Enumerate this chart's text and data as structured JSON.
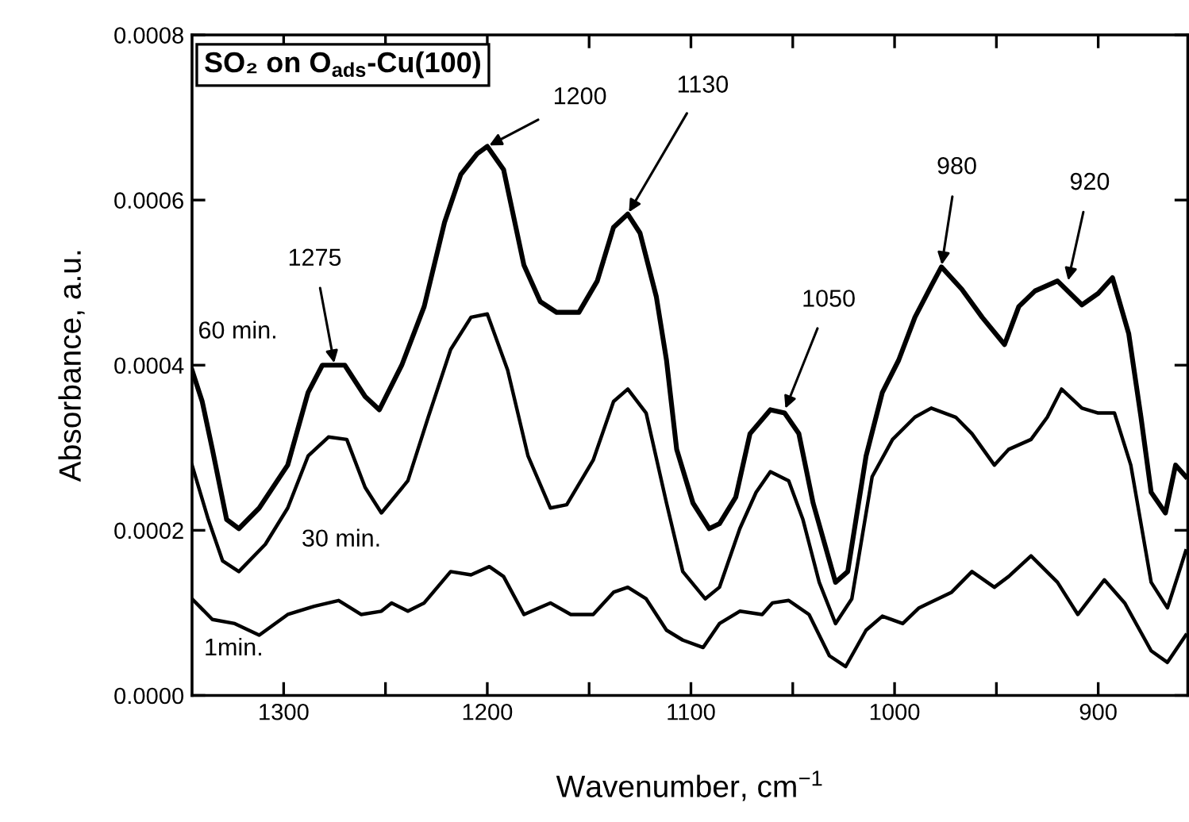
{
  "chart_data": {
    "type": "line",
    "title": "SO₂ on O$_{ads}$-Cu(100)",
    "xlabel": "Wavenumber, cm$^{−1}$",
    "ylabel": "Absorbance, a.u.",
    "xlim": [
      1345,
      856
    ],
    "xticks": [
      1300,
      {
        "value": 1250,
        "label": null
      },
      1200,
      {
        "value": 1150,
        "label": null
      },
      1100,
      {
        "value": 1050,
        "label": null
      },
      1000,
      {
        "value": 950,
        "label": null
      },
      900
    ],
    "ylim": [
      0,
      0.0008
    ],
    "yticks": [
      {
        "value": 0,
        "label": "0.0000"
      },
      {
        "value": 0.0002,
        "label": "0.0002"
      },
      {
        "value": 0.0004,
        "label": "0.0004"
      },
      {
        "value": 0.0006,
        "label": "0.0006"
      },
      {
        "value": 0.0008,
        "label": "0.0008"
      }
    ],
    "grid": false,
    "legend": false,
    "marker": "none",
    "line_style": "solid",
    "series": [
      {
        "name": "60 min.",
        "color": "#000000",
        "x": [
          1345,
          1340,
          1335,
          1328,
          1322,
          1312,
          1298,
          1288,
          1281,
          1270,
          1260,
          1253,
          1242,
          1231,
          1221,
          1213,
          1205,
          1200,
          1192,
          1182,
          1174,
          1166,
          1155,
          1146,
          1138,
          1131,
          1125,
          1117,
          1112,
          1107,
          1099,
          1091,
          1086,
          1078,
          1071,
          1061,
          1054,
          1047,
          1040,
          1029,
          1023,
          1014,
          1006,
          998,
          990,
          982,
          977,
          967,
          957,
          946,
          939,
          931,
          920,
          908,
          900,
          893,
          885,
          879,
          874,
          867,
          862,
          857
        ],
        "values": [
          0.000394,
          0.000356,
          0.000298,
          0.000213,
          0.000202,
          0.000227,
          0.000279,
          0.000367,
          0.0004,
          0.0004,
          0.000362,
          0.000346,
          0.0004,
          0.000471,
          0.000573,
          0.000631,
          0.000656,
          0.000665,
          0.000637,
          0.000521,
          0.000477,
          0.000464,
          0.000464,
          0.000502,
          0.000567,
          0.000583,
          0.00056,
          0.000483,
          0.000406,
          0.000298,
          0.000233,
          0.000202,
          0.000208,
          0.00024,
          0.000317,
          0.000346,
          0.000342,
          0.000317,
          0.000233,
          0.000137,
          0.00015,
          0.00029,
          0.000367,
          0.000406,
          0.000458,
          0.000496,
          0.000519,
          0.000492,
          0.000458,
          0.000425,
          0.000471,
          0.00049,
          0.000502,
          0.000473,
          0.000487,
          0.000506,
          0.000438,
          0.000337,
          0.000246,
          0.000221,
          0.000279,
          0.000265
        ]
      },
      {
        "name": "30 min.",
        "color": "#000000",
        "x": [
          1345,
          1337,
          1330,
          1322,
          1309,
          1298,
          1288,
          1278,
          1269,
          1260,
          1252,
          1239,
          1229,
          1218,
          1208,
          1200,
          1190,
          1180,
          1169,
          1161,
          1148,
          1138,
          1131,
          1122,
          1112,
          1104,
          1093,
          1086,
          1076,
          1068,
          1061,
          1052,
          1045,
          1037,
          1029,
          1021,
          1011,
          1001,
          990,
          982,
          970,
          962,
          951,
          944,
          933,
          925,
          918,
          908,
          900,
          892,
          884,
          878,
          874,
          866,
          861,
          857
        ],
        "values": [
          0.000279,
          0.000213,
          0.000163,
          0.00015,
          0.000183,
          0.000227,
          0.00029,
          0.000313,
          0.00031,
          0.000252,
          0.000221,
          0.00026,
          0.000337,
          0.000419,
          0.000458,
          0.000462,
          0.000394,
          0.00029,
          0.000227,
          0.000231,
          0.000285,
          0.000356,
          0.000371,
          0.000342,
          0.000233,
          0.00015,
          0.000117,
          0.000131,
          0.000202,
          0.000246,
          0.000271,
          0.00026,
          0.000213,
          0.000137,
          8.7e-05,
          0.000117,
          0.000265,
          0.00031,
          0.000337,
          0.000348,
          0.000337,
          0.000317,
          0.000279,
          0.000298,
          0.00031,
          0.000337,
          0.000371,
          0.000348,
          0.000342,
          0.000342,
          0.000279,
          0.000194,
          0.000137,
          0.000106,
          0.000144,
          0.000175
        ]
      },
      {
        "name": "1min.",
        "color": "#000000",
        "x": [
          1345,
          1335,
          1324,
          1312,
          1298,
          1285,
          1273,
          1262,
          1252,
          1247,
          1239,
          1231,
          1218,
          1208,
          1199,
          1192,
          1182,
          1169,
          1159,
          1148,
          1138,
          1131,
          1122,
          1112,
          1104,
          1094,
          1086,
          1076,
          1065,
          1060,
          1052,
          1042,
          1032,
          1024,
          1014,
          1006,
          996,
          988,
          972,
          962,
          951,
          944,
          933,
          920,
          910,
          897,
          887,
          874,
          866,
          857
        ],
        "values": [
          0.000117,
          9.2e-05,
          8.7e-05,
          7.3e-05,
          9.8e-05,
          0.000108,
          0.000115,
          9.8e-05,
          0.000102,
          0.000112,
          0.000102,
          0.000112,
          0.00015,
          0.000146,
          0.000156,
          0.000144,
          9.8e-05,
          0.000112,
          9.8e-05,
          9.8e-05,
          0.000125,
          0.000131,
          0.000117,
          7.9e-05,
          6.7e-05,
          5.8e-05,
          8.7e-05,
          0.000102,
          9.8e-05,
          0.000112,
          0.000115,
          9.8e-05,
          4.8e-05,
          3.5e-05,
          7.9e-05,
          9.6e-05,
          8.7e-05,
          0.000106,
          0.000125,
          0.00015,
          0.000131,
          0.000144,
          0.000169,
          0.000137,
          9.8e-05,
          0.00014,
          0.000112,
          5.4e-05,
          4e-05,
          7.3e-05
        ]
      }
    ],
    "annotations": [
      {
        "text": "1275",
        "x": 1275,
        "y": 0.0004
      },
      {
        "text": "1200",
        "x": 1200,
        "y": 0.000665
      },
      {
        "text": "1130",
        "x": 1131,
        "y": 0.000583
      },
      {
        "text": "1050",
        "x": 1054,
        "y": 0.000345
      },
      {
        "text": "980",
        "x": 977,
        "y": 0.000519
      },
      {
        "text": "920",
        "x": 915,
        "y": 0.0005
      }
    ]
  }
}
